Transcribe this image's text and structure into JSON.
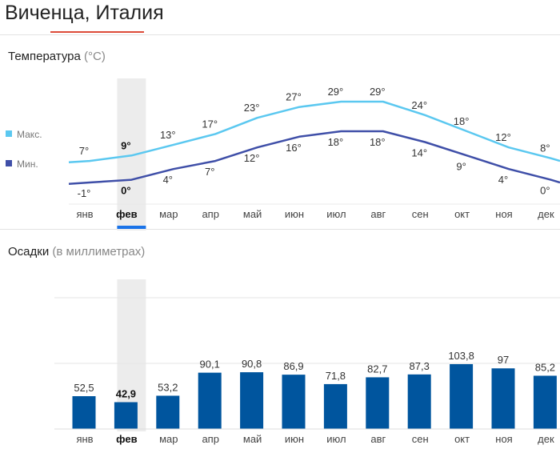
{
  "page": {
    "title": "Виченца, Италия",
    "selected_month_index": 1
  },
  "colors": {
    "max_line": "#5bc8f0",
    "min_line": "#3f4fa8",
    "bar": "#00559e",
    "selection_band": "#ececec",
    "selection_underline": "#1a73e8",
    "title_underline": "#dd4b39"
  },
  "temperature": {
    "title": "Температура",
    "unit": "(°C)",
    "legend": {
      "max": "Макс.",
      "min": "Мин."
    }
  },
  "precipitation": {
    "title": "Осадки",
    "unit": "(в миллиметрах)"
  },
  "chart_data": [
    {
      "type": "line",
      "categories": [
        "янв",
        "фев",
        "мар",
        "апр",
        "май",
        "июн",
        "июл",
        "авг",
        "сен",
        "окт",
        "ноя",
        "дек"
      ],
      "series": [
        {
          "name": "Макс.",
          "values": [
            7,
            9,
            13,
            17,
            23,
            27,
            29,
            29,
            24,
            18,
            12,
            8
          ],
          "labels": [
            "7°",
            "9°",
            "13°",
            "17°",
            "23°",
            "27°",
            "29°",
            "29°",
            "24°",
            "18°",
            "12°",
            "8°"
          ]
        },
        {
          "name": "Мин.",
          "values": [
            -1,
            0,
            4,
            7,
            12,
            16,
            18,
            18,
            14,
            9,
            4,
            0
          ],
          "labels": [
            "-1°",
            "0°",
            "4°",
            "7°",
            "12°",
            "16°",
            "18°",
            "18°",
            "14°",
            "9°",
            "4°",
            "0°"
          ]
        }
      ],
      "ylim": [
        -1,
        29
      ],
      "grid": false,
      "legend": "left"
    },
    {
      "type": "bar",
      "categories": [
        "янв",
        "фев",
        "мар",
        "апр",
        "май",
        "июн",
        "июл",
        "авг",
        "сен",
        "окт",
        "ноя",
        "дек"
      ],
      "values": [
        52.5,
        42.9,
        53.2,
        90.1,
        90.8,
        86.9,
        71.8,
        82.7,
        87.3,
        103.8,
        97,
        85.2
      ],
      "labels": [
        "52,5",
        "42,9",
        "53,2",
        "90,1",
        "90,8",
        "86,9",
        "71,8",
        "82,7",
        "87,3",
        "103,8",
        "97",
        "85,2"
      ],
      "ylim": [
        0,
        210
      ],
      "grid": true
    }
  ]
}
